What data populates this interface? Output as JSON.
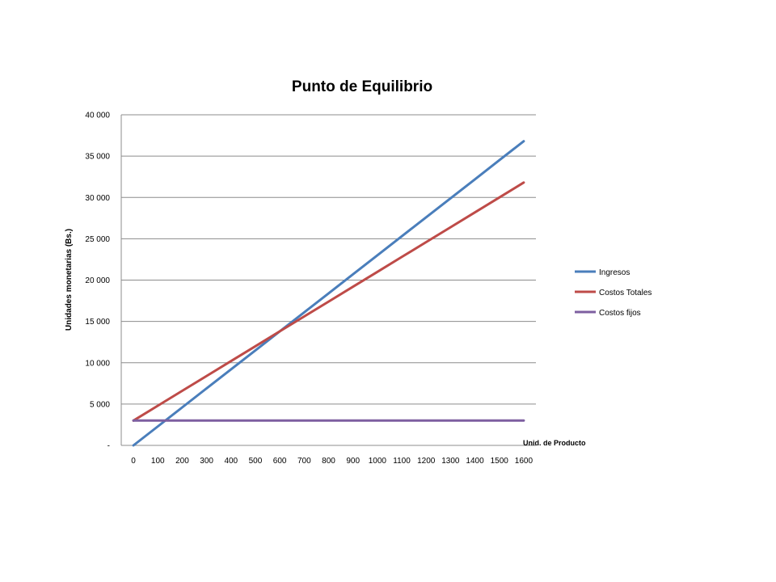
{
  "chart_data": {
    "type": "line",
    "title": "Punto de Equilibrio",
    "ylabel": "Unidades monetarias (Bs.)",
    "xlabel": "Unid. de Producto",
    "ylim": [
      0,
      40000
    ],
    "y_ticks": [
      {
        "value": 0,
        "label": "-"
      },
      {
        "value": 5000,
        "label": "5 000"
      },
      {
        "value": 10000,
        "label": "10 000"
      },
      {
        "value": 15000,
        "label": "15 000"
      },
      {
        "value": 20000,
        "label": "20 000"
      },
      {
        "value": 25000,
        "label": "25 000"
      },
      {
        "value": 30000,
        "label": "30 000"
      },
      {
        "value": 35000,
        "label": "35 000"
      },
      {
        "value": 40000,
        "label": "40 000"
      }
    ],
    "categories": [
      "0",
      "100",
      "200",
      "300",
      "400",
      "500",
      "600",
      "700",
      "800",
      "900",
      "1000",
      "1100",
      "1200",
      "1300",
      "1400",
      "1500",
      "1600"
    ],
    "grid": true,
    "legend_position": "right",
    "series": [
      {
        "name": "Ingresos",
        "color": "#4a7ebb",
        "values": [
          0,
          2300,
          4600,
          6900,
          9200,
          11500,
          13800,
          16100,
          18400,
          20700,
          23000,
          25300,
          27600,
          29900,
          32200,
          34500,
          36800
        ]
      },
      {
        "name": "Costos Totales",
        "color": "#be4b48",
        "values": [
          3000,
          4800,
          6600,
          8400,
          10200,
          12000,
          13800,
          15600,
          17400,
          19200,
          21000,
          22800,
          24600,
          26400,
          28200,
          30000,
          31800
        ]
      },
      {
        "name": "Costos fijos",
        "color": "#7d5fa0",
        "values": [
          3000,
          3000,
          3000,
          3000,
          3000,
          3000,
          3000,
          3000,
          3000,
          3000,
          3000,
          3000,
          3000,
          3000,
          3000,
          3000,
          3000
        ]
      }
    ]
  }
}
